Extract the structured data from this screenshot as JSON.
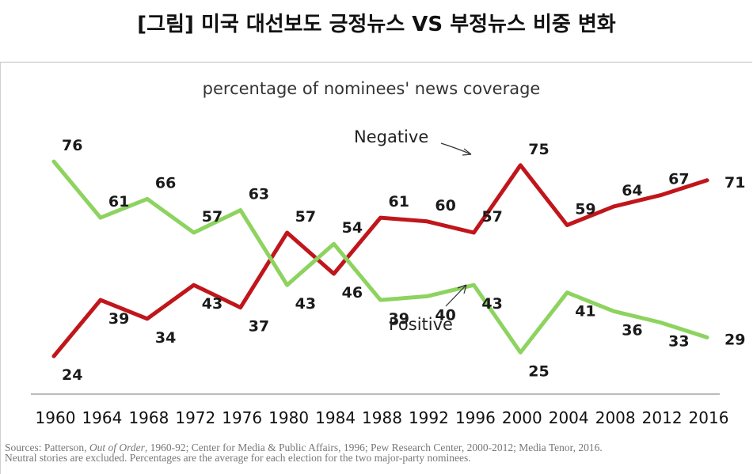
{
  "page": {
    "title": "[그림] 미국 대선보도 긍정뉴스 VS 부정뉴스 비중 변화"
  },
  "colors": {
    "negative": "#c0161b",
    "positive": "#8dd35f",
    "baseline": "#bcbcbc",
    "label": "#1a1a1a"
  },
  "chart_data": {
    "type": "line",
    "title": "percentage of nominees' news coverage",
    "xlabel": "",
    "ylabel": "",
    "ylim": [
      20,
      80
    ],
    "grid": false,
    "legend": "inline annotations",
    "categories": [
      "1960",
      "1964",
      "1968",
      "1972",
      "1976",
      "1980",
      "1984",
      "1988",
      "1992",
      "1996",
      "2000",
      "2004",
      "2008",
      "2012",
      "2016"
    ],
    "series": [
      {
        "name": "Negative",
        "color_key": "negative",
        "values": [
          24,
          39,
          34,
          43,
          37,
          57,
          46,
          61,
          60,
          57,
          75,
          59,
          64,
          67,
          71
        ]
      },
      {
        "name": "Positive",
        "color_key": "positive",
        "values": [
          76,
          61,
          66,
          57,
          63,
          43,
          54,
          39,
          40,
          43,
          25,
          41,
          36,
          33,
          29
        ]
      }
    ],
    "annotations": {
      "negative_label": "Negative",
      "positive_label": "Positive"
    }
  },
  "sources": {
    "prefix": "Sources: Patterson, ",
    "book": "Out of Order",
    "rest": ", 1960-92; Center for Media & Public Affairs, 1996; Pew Research Center, 2000-2012; Media Tenor, 2016.",
    "line2": "Neutral stories are excluded. Percentages are the average for each election for the two major-party nominees."
  }
}
